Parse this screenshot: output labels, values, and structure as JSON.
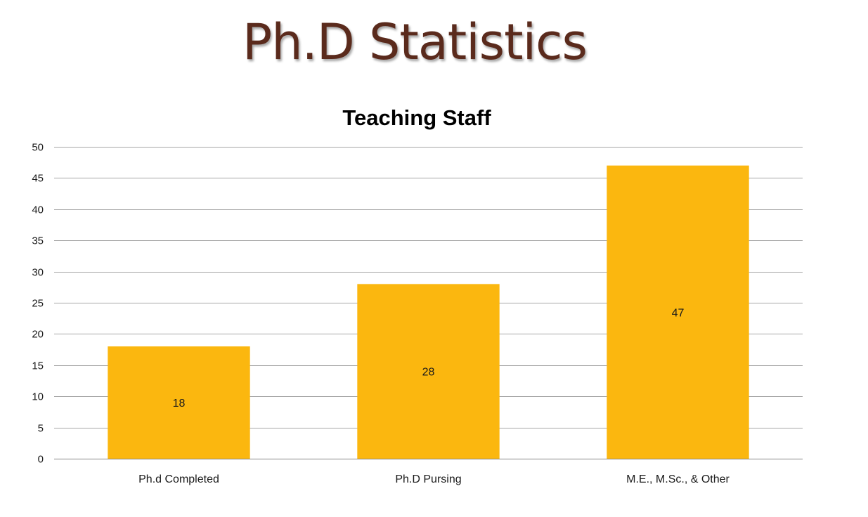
{
  "slide": {
    "title": "Ph.D Statistics"
  },
  "colors": {
    "title": "#5a2a1c",
    "bar": "#fbb70f",
    "grid": "#a6a6a6"
  },
  "chart_data": {
    "type": "bar",
    "title": "Teaching Staff",
    "categories": [
      "Ph.d Completed",
      "Ph.D Pursing",
      "M.E., M.Sc., & Other"
    ],
    "values": [
      18,
      28,
      47
    ],
    "data_labels": [
      "18",
      "28",
      "47"
    ],
    "xlabel": "",
    "ylabel": "",
    "ylim": [
      0,
      50
    ],
    "yticks": [
      0,
      5,
      10,
      15,
      20,
      25,
      30,
      35,
      40,
      45,
      50
    ],
    "grid": true,
    "legend": "none"
  }
}
